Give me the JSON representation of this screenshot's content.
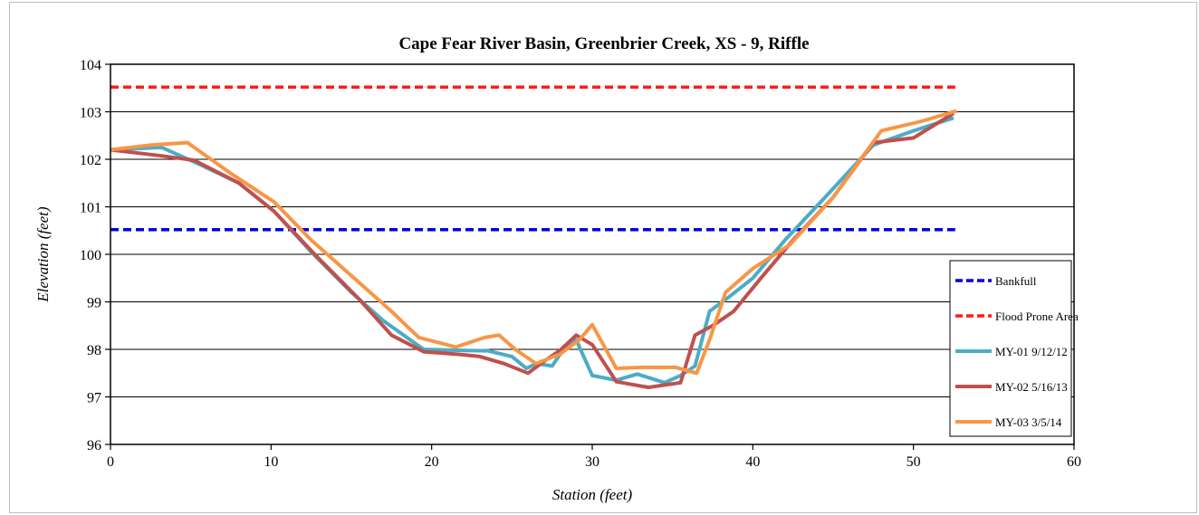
{
  "chart_data": {
    "type": "line",
    "title": "Cape Fear River Basin, Greenbrier Creek, XS - 9, Riffle",
    "xlabel": "Station (feet)",
    "ylabel": "Elevation (feet)",
    "xlim": [
      0,
      60
    ],
    "ylim": [
      96,
      104
    ],
    "xticks": [
      0,
      10,
      20,
      30,
      40,
      50,
      60
    ],
    "yticks": [
      96,
      97,
      98,
      99,
      100,
      101,
      102,
      103,
      104
    ],
    "grid": "horizontal",
    "legend_position": "bottom-right",
    "series": [
      {
        "name": "Bankfull",
        "color": "#0000dd",
        "style": "dashed",
        "x": [
          0,
          52.6
        ],
        "y": [
          100.52,
          100.52
        ]
      },
      {
        "name": "Flood Prone Area",
        "color": "#ff1a1a",
        "style": "dashed",
        "x": [
          0,
          52.6
        ],
        "y": [
          103.52,
          103.52
        ]
      },
      {
        "name": "MY-01 9/12/12",
        "color": "#4bacc6",
        "style": "solid",
        "x": [
          0,
          3.2,
          5.5,
          8,
          10.2,
          12.5,
          15,
          17,
          19.5,
          21.5,
          23.5,
          25,
          25.9,
          26.5,
          27.5,
          28.3,
          29,
          30,
          31.5,
          32.8,
          34.5,
          35.5,
          36.4,
          37.3,
          38.5,
          40,
          42,
          44.5,
          47.5,
          50,
          52.5
        ],
        "y": [
          102.2,
          102.25,
          101.9,
          101.5,
          100.9,
          100.05,
          99.2,
          98.6,
          98.0,
          97.98,
          97.97,
          97.85,
          97.6,
          97.7,
          97.65,
          98.05,
          98.2,
          97.45,
          97.35,
          97.48,
          97.3,
          97.45,
          97.65,
          98.8,
          99.1,
          99.5,
          100.3,
          101.2,
          102.3,
          102.6,
          102.87
        ]
      },
      {
        "name": "MY-02 5/16/13",
        "color": "#c0504d",
        "style": "solid",
        "x": [
          0,
          3,
          5.2,
          8,
          10.2,
          13,
          15.5,
          17.5,
          19.5,
          21.5,
          23,
          24.5,
          26,
          27,
          28,
          29,
          30,
          31.5,
          33.5,
          35.5,
          36.4,
          37.5,
          38.8,
          40.5,
          42.5,
          45,
          47.5,
          50,
          52.5
        ],
        "y": [
          102.2,
          102.08,
          101.98,
          101.5,
          100.9,
          99.9,
          99.05,
          98.3,
          97.95,
          97.9,
          97.85,
          97.7,
          97.5,
          97.75,
          97.98,
          98.3,
          98.1,
          97.32,
          97.2,
          97.3,
          98.3,
          98.5,
          98.8,
          99.5,
          100.3,
          101.2,
          102.35,
          102.45,
          102.97
        ]
      },
      {
        "name": "MY-03 3/5/14",
        "color": "#f79646",
        "style": "solid",
        "x": [
          0,
          2.5,
          4.8,
          7.5,
          10.2,
          12.5,
          15.5,
          17.5,
          19.2,
          21.5,
          23.3,
          24.2,
          25.2,
          26.5,
          28,
          29.2,
          30,
          31.5,
          33.2,
          35.2,
          36.5,
          37.3,
          38.3,
          40,
          42.3,
          45,
          48,
          50.5,
          52.7
        ],
        "y": [
          102.2,
          102.3,
          102.35,
          101.7,
          101.1,
          100.3,
          99.4,
          98.8,
          98.25,
          98.05,
          98.25,
          98.3,
          98.0,
          97.7,
          97.9,
          98.2,
          98.52,
          97.6,
          97.62,
          97.62,
          97.5,
          98.2,
          99.2,
          99.7,
          100.2,
          101.2,
          102.6,
          102.8,
          103.02
        ]
      }
    ]
  }
}
